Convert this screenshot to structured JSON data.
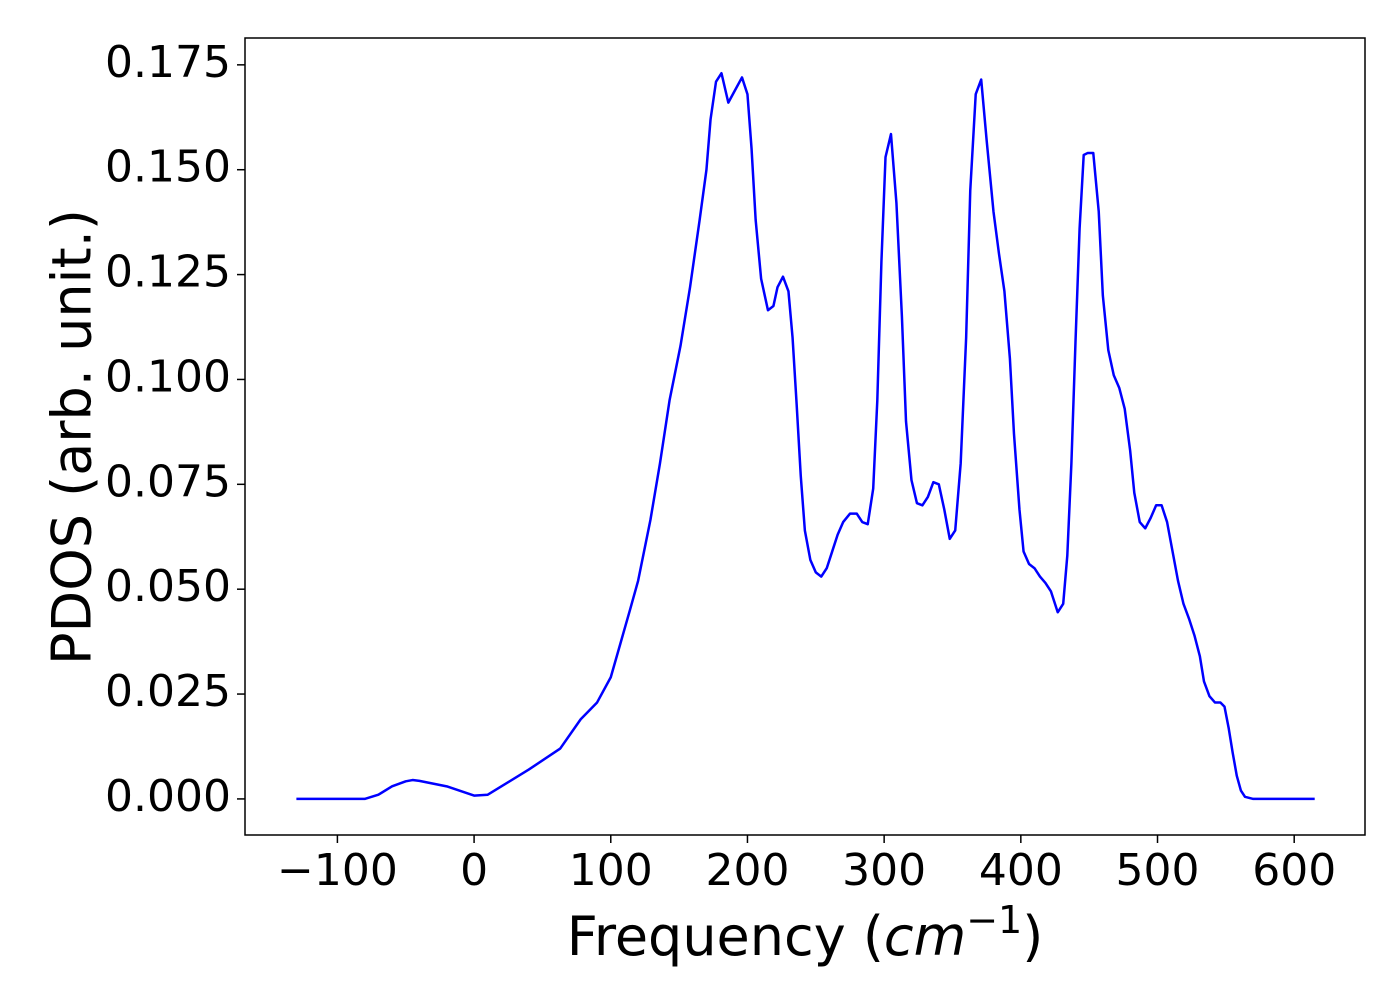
{
  "chart_data": {
    "type": "line",
    "xlabel": [
      "Frequency (",
      "cm",
      "−1",
      ")"
    ],
    "ylabel": "PDOS (arb. unit.)",
    "xlim": [
      -167.6,
      651.8
    ],
    "ylim": [
      -0.0086,
      0.1814
    ],
    "xticks": [
      {
        "value": -100,
        "label": "−100"
      },
      0,
      100,
      200,
      300,
      400,
      500,
      600
    ],
    "yticks": [
      {
        "value": 0,
        "label": "0.000"
      },
      {
        "value": 0.025,
        "label": "0.025"
      },
      {
        "value": 0.05,
        "label": "0.050"
      },
      {
        "value": 0.075,
        "label": "0.075"
      },
      {
        "value": 0.1,
        "label": "0.100"
      },
      {
        "value": 0.125,
        "label": "0.125"
      },
      {
        "value": 0.15,
        "label": "0.150"
      },
      {
        "value": 0.175,
        "label": "0.175"
      }
    ],
    "grid": false,
    "series": [
      {
        "color": "#0000ff",
        "x": [
          -130,
          -80,
          -70,
          -60,
          -50,
          -45,
          -40,
          -20,
          0,
          10,
          20,
          40,
          63,
          78,
          90,
          100,
          107,
          114,
          120,
          129,
          136,
          143,
          151,
          158,
          165,
          170,
          173,
          177,
          181,
          186,
          191,
          196,
          200,
          203,
          206,
          210,
          215,
          219,
          222,
          226,
          230,
          233,
          236,
          239,
          242,
          246,
          250,
          254,
          258,
          262,
          266,
          270,
          275,
          280,
          284,
          288,
          292,
          295,
          298,
          301,
          305,
          309,
          313,
          316,
          320,
          324,
          328,
          332,
          336,
          340,
          344,
          348,
          352,
          356,
          360,
          363,
          367,
          371,
          375,
          380,
          384,
          388,
          392,
          395,
          399,
          402,
          406,
          410,
          414,
          418,
          422,
          427,
          431,
          434,
          437,
          440,
          443,
          446,
          449,
          453,
          457,
          460,
          464,
          468,
          472,
          476,
          480,
          483,
          487,
          491,
          495,
          499,
          503,
          507,
          511,
          515,
          519,
          523,
          527,
          531,
          534,
          538,
          542,
          546,
          549,
          552,
          555,
          558,
          561,
          564,
          570,
          615
        ],
        "values": [
          0,
          0,
          0.001,
          0.003,
          0.0042,
          0.0045,
          0.0043,
          0.003,
          0.0008,
          0.001,
          0.003,
          0.007,
          0.012,
          0.019,
          0.023,
          0.029,
          0.037,
          0.045,
          0.052,
          0.0665,
          0.08,
          0.095,
          0.108,
          0.122,
          0.138,
          0.15,
          0.162,
          0.171,
          0.173,
          0.166,
          0.169,
          0.172,
          0.168,
          0.155,
          0.138,
          0.124,
          0.1165,
          0.1175,
          0.122,
          0.1245,
          0.121,
          0.11,
          0.094,
          0.077,
          0.064,
          0.057,
          0.054,
          0.053,
          0.055,
          0.059,
          0.063,
          0.066,
          0.068,
          0.068,
          0.066,
          0.0655,
          0.074,
          0.095,
          0.128,
          0.153,
          0.1585,
          0.142,
          0.115,
          0.09,
          0.076,
          0.0705,
          0.07,
          0.072,
          0.0755,
          0.075,
          0.069,
          0.062,
          0.064,
          0.08,
          0.11,
          0.145,
          0.168,
          0.1715,
          0.157,
          0.14,
          0.13,
          0.121,
          0.105,
          0.087,
          0.069,
          0.059,
          0.056,
          0.055,
          0.053,
          0.0515,
          0.0495,
          0.0445,
          0.0465,
          0.058,
          0.08,
          0.109,
          0.136,
          0.1535,
          0.154,
          0.154,
          0.14,
          0.12,
          0.107,
          0.101,
          0.098,
          0.093,
          0.083,
          0.073,
          0.066,
          0.0645,
          0.067,
          0.07,
          0.07,
          0.066,
          0.059,
          0.052,
          0.0465,
          0.043,
          0.039,
          0.034,
          0.028,
          0.0245,
          0.023,
          0.023,
          0.022,
          0.017,
          0.011,
          0.0055,
          0.002,
          0.0005,
          0,
          0
        ]
      }
    ]
  }
}
